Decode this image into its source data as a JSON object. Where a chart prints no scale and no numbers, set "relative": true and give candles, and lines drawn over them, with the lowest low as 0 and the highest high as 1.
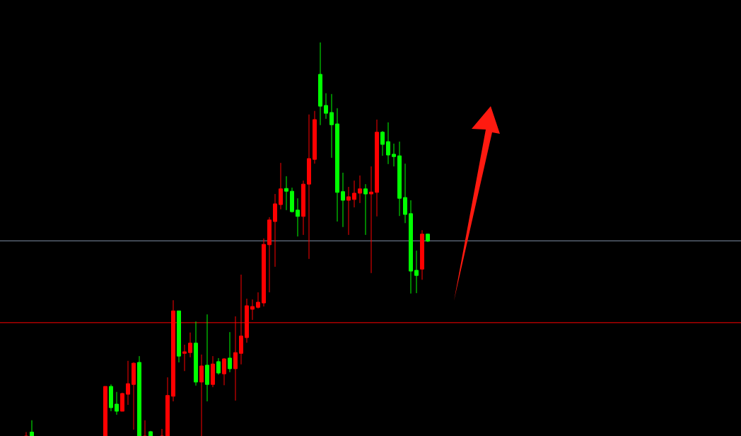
{
  "chart_data": {
    "type": "candlestick",
    "relative": true,
    "categories": [
      null,
      null,
      null,
      null,
      null,
      null,
      null,
      null,
      null,
      null,
      null,
      null,
      null,
      null,
      null,
      null,
      null,
      null,
      null,
      null,
      null,
      null,
      null,
      null,
      null,
      null,
      null,
      null,
      null,
      null,
      null,
      null,
      null,
      null,
      null,
      null,
      null,
      null,
      null,
      null,
      null,
      null,
      null,
      null,
      null,
      null,
      null,
      null,
      null,
      null,
      null,
      null,
      null,
      null,
      null,
      null,
      null,
      null,
      null,
      null,
      null,
      null,
      null,
      null,
      null,
      null,
      null,
      null,
      null,
      null,
      null,
      null
    ],
    "ohlc": [
      [
        0,
        0.01,
        0,
        0
      ],
      [
        0.01,
        0.04,
        0,
        0
      ],
      null,
      null,
      null,
      null,
      null,
      null,
      null,
      null,
      null,
      null,
      null,
      null,
      [
        0,
        0.126,
        0,
        0.126
      ],
      [
        0.126,
        0.131,
        0.063,
        0.072
      ],
      [
        0.081,
        0.112,
        0.054,
        0.063
      ],
      [
        0.063,
        0.11,
        0.063,
        0.108
      ],
      [
        0.106,
        0.191,
        0.079,
        0.133
      ],
      [
        0.131,
        0.187,
        0.016,
        0.185
      ],
      [
        0.187,
        0.203,
        0,
        0
      ],
      [
        0,
        0.04,
        0,
        0
      ],
      [
        0.011,
        0.013,
        0,
        0
      ],
      null,
      [
        0,
        0.018,
        0,
        0
      ],
      [
        0,
        0.149,
        0,
        0.103
      ],
      [
        0.101,
        0.345,
        0.088,
        0.318
      ],
      [
        0.318,
        0.318,
        0.187,
        0.203
      ],
      [
        0.21,
        0.232,
        0.165,
        0.214
      ],
      [
        0.212,
        0.263,
        0.2,
        0.236
      ],
      [
        0.236,
        0.291,
        0.128,
        0.137
      ],
      [
        0.137,
        0.207,
        0,
        0.178
      ],
      [
        0.18,
        0.309,
        0.088,
        0.131
      ],
      [
        0.131,
        0.203,
        0.124,
        0.183
      ],
      [
        0.189,
        0.198,
        0.156,
        0.16
      ],
      [
        0.158,
        0.198,
        0.129,
        0.196
      ],
      [
        0.198,
        0.264,
        0.162,
        0.171
      ],
      [
        0.171,
        0.304,
        0.09,
        0.212
      ],
      [
        0.21,
        0.41,
        0.182,
        0.254
      ],
      [
        0.25,
        0.349,
        0.237,
        0.331
      ],
      [
        0.322,
        0.347,
        0.295,
        0.329
      ],
      [
        0.327,
        0.365,
        0.324,
        0.34
      ],
      [
        0.338,
        0.502,
        0.329,
        0.487
      ],
      [
        0.486,
        0.556,
        0.365,
        0.549
      ],
      [
        0.545,
        0.615,
        0.43,
        0.59
      ],
      [
        0.588,
        0.694,
        0.576,
        0.628
      ],
      [
        0.629,
        0.66,
        0.574,
        0.622
      ],
      [
        0.622,
        0.631,
        0.568,
        0.57
      ],
      [
        0.574,
        0.604,
        0.507,
        0.558
      ],
      [
        0.558,
        0.649,
        0.511,
        0.64
      ],
      [
        0.64,
        0.817,
        0.45,
        0.705
      ],
      [
        0.703,
        0.826,
        0.692,
        0.804
      ],
      [
        0.919,
        1,
        0.79,
        0.838
      ],
      [
        0.84,
        0.871,
        0.806,
        0.82
      ],
      [
        0.822,
        0.869,
        0.707,
        0.791
      ],
      [
        0.793,
        0.833,
        0.545,
        0.619
      ],
      [
        0.621,
        0.669,
        0.531,
        0.599
      ],
      [
        0.599,
        0.633,
        0.511,
        0.608
      ],
      [
        0.601,
        0.649,
        0.581,
        0.617
      ],
      [
        0.617,
        0.662,
        0.592,
        0.628
      ],
      [
        0.628,
        0.64,
        0.511,
        0.615
      ],
      [
        0.615,
        0.685,
        0.414,
        0.62
      ],
      [
        0.619,
        0.804,
        0.558,
        0.772
      ],
      [
        0.772,
        0.775,
        0.712,
        0.741
      ],
      [
        0.748,
        0.797,
        0.691,
        0.714
      ],
      [
        0.716,
        0.743,
        0.685,
        0.71
      ],
      [
        0.712,
        0.748,
        0.559,
        0.604
      ],
      [
        0.606,
        0.692,
        0.541,
        0.563
      ],
      [
        0.565,
        0.599,
        0.362,
        0.419
      ],
      [
        0.421,
        0.471,
        0.363,
        0.408
      ],
      [
        0.424,
        0.523,
        0.397,
        0.513
      ],
      [
        0.513,
        0.514,
        0.493,
        0.495
      ]
    ],
    "ref_lines": [
      {
        "axis": "y",
        "value": 0.496,
        "color": "#8090a8"
      },
      {
        "axis": "y",
        "value": 0.288,
        "color": "#ff0000"
      }
    ]
  }
}
